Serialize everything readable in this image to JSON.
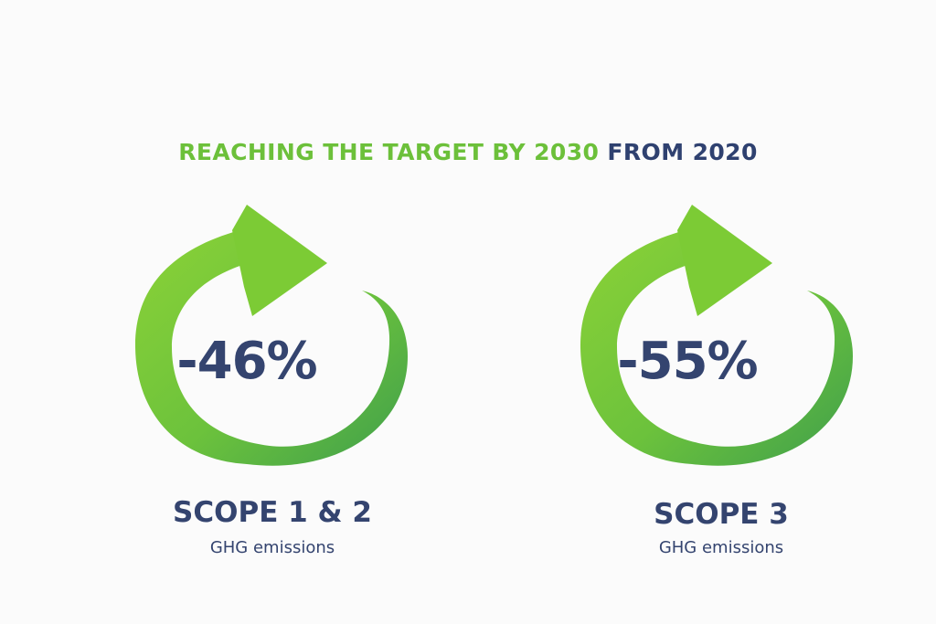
{
  "title": {
    "highlight": "REACHING THE TARGET BY 2030",
    "rest": "FROM 2020"
  },
  "colors": {
    "arrow_light": "#7dcc35",
    "arrow_dark": "#43a84a",
    "text_navy": "#34446f",
    "title_green": "#6cc03a"
  },
  "targets": [
    {
      "icon": "circular-arrow-icon",
      "percent": "-46%",
      "scope": "SCOPE 1 & 2",
      "subtitle": "GHG emissions"
    },
    {
      "icon": "circular-arrow-icon",
      "percent": "-55%",
      "scope": "SCOPE 3",
      "subtitle": "GHG emissions"
    }
  ]
}
